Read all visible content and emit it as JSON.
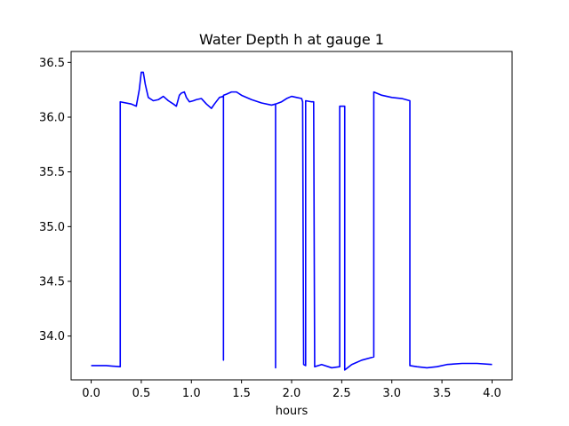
{
  "chart_data": {
    "type": "line",
    "title": "Water Depth h at gauge 1",
    "xlabel": "hours",
    "ylabel": "",
    "xlim": [
      -0.2,
      4.2
    ],
    "ylim": [
      33.6,
      36.6
    ],
    "xticks": [
      0.0,
      0.5,
      1.0,
      1.5,
      2.0,
      2.5,
      3.0,
      3.5,
      4.0
    ],
    "xtick_labels": [
      "0.0",
      "0.5",
      "1.0",
      "1.5",
      "2.0",
      "2.5",
      "3.0",
      "3.5",
      "4.0"
    ],
    "yticks": [
      34.0,
      34.5,
      35.0,
      35.5,
      36.0,
      36.5
    ],
    "ytick_labels": [
      "34.0",
      "34.5",
      "35.0",
      "35.5",
      "36.0",
      "36.5"
    ],
    "grid": false,
    "series": [
      {
        "color": "#0000ff",
        "x": [
          0.0,
          0.15,
          0.29,
          0.29,
          0.4,
          0.45,
          0.48,
          0.5,
          0.52,
          0.54,
          0.57,
          0.62,
          0.67,
          0.72,
          0.77,
          0.82,
          0.85,
          0.88,
          0.9,
          0.93,
          0.95,
          0.98,
          1.02,
          1.05,
          1.1,
          1.15,
          1.2,
          1.23,
          1.28,
          1.32,
          1.32,
          1.32,
          1.35,
          1.4,
          1.45,
          1.5,
          1.6,
          1.7,
          1.8,
          1.84,
          1.84,
          1.84,
          1.9,
          1.95,
          2.0,
          2.05,
          2.1,
          2.11,
          2.12,
          2.14,
          2.14,
          2.2,
          2.22,
          2.23,
          2.3,
          2.4,
          2.48,
          2.48,
          2.51,
          2.53,
          2.53,
          2.6,
          2.7,
          2.82,
          2.82,
          2.9,
          3.0,
          3.1,
          3.18,
          3.18,
          3.25,
          3.35,
          3.45,
          3.55,
          3.7,
          3.85,
          4.0
        ],
        "y": [
          33.73,
          33.73,
          33.72,
          36.14,
          36.12,
          36.1,
          36.25,
          36.41,
          36.41,
          36.3,
          36.18,
          36.15,
          36.16,
          36.19,
          36.15,
          36.12,
          36.1,
          36.2,
          36.22,
          36.23,
          36.18,
          36.14,
          36.15,
          36.16,
          36.17,
          36.12,
          36.08,
          36.12,
          36.18,
          36.19,
          33.78,
          36.2,
          36.21,
          36.23,
          36.23,
          36.2,
          36.16,
          36.13,
          36.11,
          36.12,
          33.71,
          36.12,
          36.14,
          36.17,
          36.19,
          36.18,
          36.17,
          36.14,
          33.74,
          33.73,
          36.15,
          36.14,
          36.14,
          33.72,
          33.74,
          33.71,
          33.72,
          36.1,
          36.1,
          36.1,
          33.69,
          33.74,
          33.78,
          33.81,
          36.23,
          36.2,
          36.18,
          36.17,
          36.15,
          33.73,
          33.72,
          33.71,
          33.72,
          33.74,
          33.75,
          33.75,
          33.74
        ]
      }
    ]
  }
}
